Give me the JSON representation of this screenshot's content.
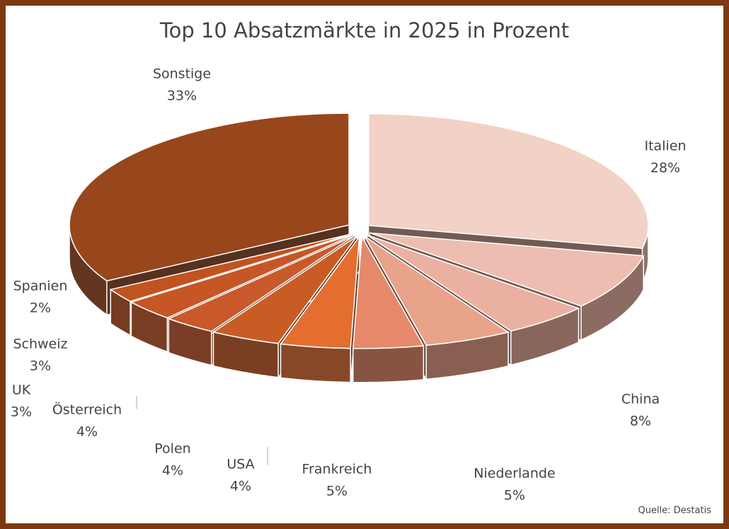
{
  "chart_data": {
    "type": "pie",
    "title": "Top 10 Absatzmärkte in 2025 in Prozent",
    "categories": [
      "Italien",
      "China",
      "Niederlande",
      "Frankreich",
      "USA",
      "Polen",
      "Österreich",
      "UK",
      "Schweiz",
      "Spanien",
      "Sonstige"
    ],
    "values": [
      28,
      8,
      5,
      5,
      4,
      4,
      4,
      3,
      3,
      2,
      33
    ],
    "value_labels": [
      "28%",
      "8%",
      "5%",
      "5%",
      "4%",
      "4%",
      "4%",
      "3%",
      "3%",
      "2%",
      "33%"
    ],
    "colors": [
      "#f2d1c6",
      "#edbdb1",
      "#eab1a2",
      "#e9a38b",
      "#e6896a",
      "#e46e30",
      "#c95c25",
      "#c9592a",
      "#c65626",
      "#c15320",
      "#98471c"
    ],
    "source": "Quelle: Destatis"
  }
}
